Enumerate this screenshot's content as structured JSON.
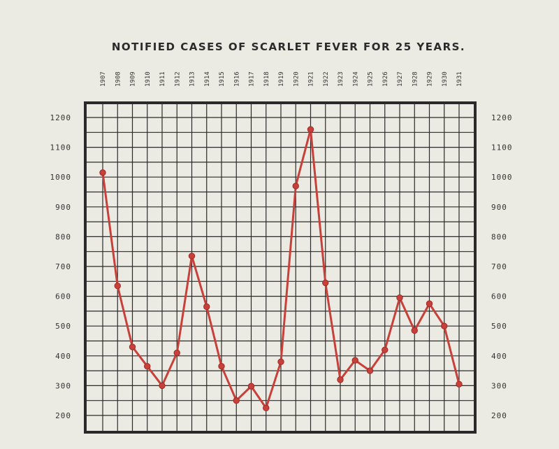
{
  "chart_data": {
    "type": "line",
    "title": "NOTIFIED CASES OF SCARLET FEVER FOR 25 YEARS.",
    "xlabel": "",
    "ylabel": "",
    "categories": [
      "1907",
      "1908",
      "1909",
      "1910",
      "1911",
      "1912",
      "1913",
      "1914",
      "1915",
      "1916",
      "1917",
      "1918",
      "1919",
      "1920",
      "1921",
      "1922",
      "1923",
      "1924",
      "1925",
      "1926",
      "1927",
      "1928",
      "1929",
      "1930",
      "1931"
    ],
    "series": [
      {
        "values": [
          1015,
          635,
          430,
          365,
          300,
          410,
          735,
          565,
          365,
          250,
          298,
          225,
          380,
          970,
          1160,
          645,
          320,
          385,
          350,
          420,
          595,
          485,
          575,
          500,
          305
        ]
      }
    ],
    "ylim": [
      150,
      1250
    ],
    "yticks": [
      "200",
      "300",
      "400",
      "500",
      "600",
      "700",
      "800",
      "900",
      "1000",
      "1100",
      "1200"
    ],
    "ytick_values": [
      200,
      300,
      400,
      500,
      600,
      700,
      800,
      900,
      1000,
      1100,
      1200
    ],
    "grid": true,
    "line_color": "#c8403a"
  }
}
